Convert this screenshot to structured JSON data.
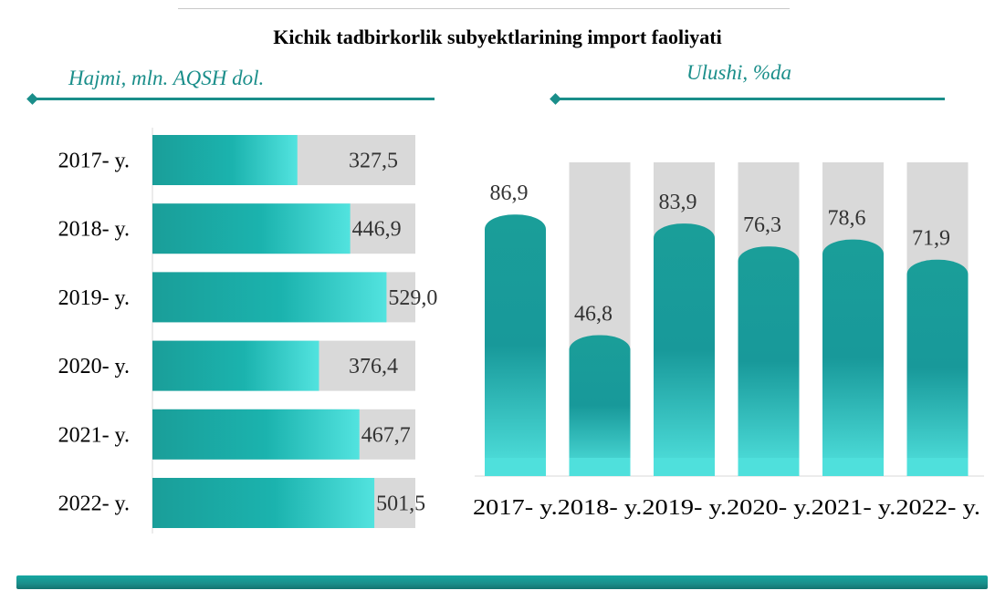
{
  "title": "Kichik tadbirkorlik subyektlarining import faoliyati",
  "colors": {
    "accent": "#1a8e8a",
    "bar_dark": "#1a9e99",
    "bar_light": "#4fe0dc",
    "track": "#d9d9d9"
  },
  "chart_data": [
    {
      "type": "bar",
      "orientation": "horizontal",
      "title": "Hajmi, mln. AQSH dol.",
      "categories": [
        "2017- y.",
        "2018- y.",
        "2019- y.",
        "2020- y.",
        "2021- y.",
        "2022- y."
      ],
      "values": [
        "327,5",
        "446,9",
        "529,0",
        "376,4",
        "467,7",
        "501,5"
      ],
      "numeric_values": [
        327.5,
        446.9,
        529.0,
        376.4,
        467.7,
        501.5
      ],
      "xlim": [
        0,
        550
      ],
      "grid": false,
      "legend": "none"
    },
    {
      "type": "bar",
      "orientation": "vertical",
      "title": "Ulushi, %da",
      "categories": [
        "2017- y.",
        "2018- y.",
        "2019- y.",
        "2020- y.",
        "2021- y.",
        "2022- y."
      ],
      "values": [
        "86,9",
        "46,8",
        "83,9",
        "76,3",
        "78,6",
        "71,9"
      ],
      "numeric_values": [
        86.9,
        46.8,
        83.9,
        76.3,
        78.6,
        71.9
      ],
      "ylim": [
        0,
        100
      ],
      "grid": false,
      "legend": "none"
    }
  ]
}
